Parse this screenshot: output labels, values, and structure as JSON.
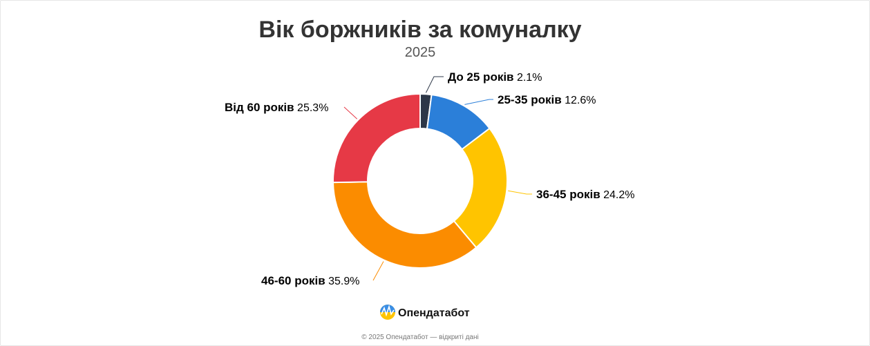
{
  "chart_data": {
    "type": "pie",
    "donut": true,
    "title": "Вік боржників за комуналку",
    "subtitle": "2025",
    "value_suffix": "%",
    "slices": [
      {
        "label": "До 25 років",
        "value": 2.1,
        "color": "#2d3748"
      },
      {
        "label": "25-35 років",
        "value": 12.6,
        "color": "#2b7fd9"
      },
      {
        "label": "36-45 років",
        "value": 24.2,
        "color": "#ffc400"
      },
      {
        "label": "46-60 років",
        "value": 35.9,
        "color": "#fb8c00"
      },
      {
        "label": "Від 60 років",
        "value": 25.3,
        "color": "#e63946"
      }
    ]
  },
  "brand": {
    "name": "Опендатабот",
    "icon": "opendatabot-logo-icon"
  },
  "footer": "© 2025 Опендатабот — відкриті дані"
}
